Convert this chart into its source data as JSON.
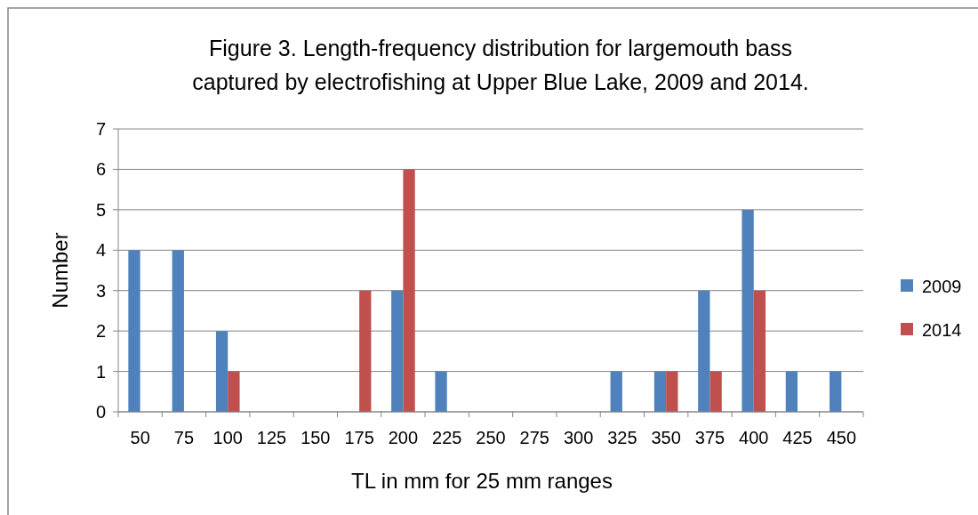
{
  "chart_data": {
    "type": "bar",
    "title": "Figure 3.  Length-frequency distribution for largemouth bass\ncaptured by electrofishing at Upper Blue Lake, 2009 and 2014.",
    "xlabel": "TL in mm for 25 mm ranges",
    "ylabel": "Number",
    "categories": [
      "50",
      "75",
      "100",
      "125",
      "150",
      "175",
      "200",
      "225",
      "250",
      "275",
      "300",
      "325",
      "350",
      "375",
      "400",
      "425",
      "450"
    ],
    "series": [
      {
        "name": "2009",
        "color": "#4f81bd",
        "values": [
          4,
          4,
          2,
          0,
          0,
          0,
          3,
          1,
          0,
          0,
          0,
          1,
          1,
          3,
          5,
          1,
          1
        ]
      },
      {
        "name": "2014",
        "color": "#c0504d",
        "values": [
          0,
          0,
          1,
          0,
          0,
          3,
          6,
          0,
          0,
          0,
          0,
          0,
          1,
          1,
          3,
          0,
          0
        ]
      }
    ],
    "ylim": [
      0,
      7
    ],
    "yticks": [
      0,
      1,
      2,
      3,
      4,
      5,
      6,
      7
    ],
    "grid": "y",
    "legend": "right"
  }
}
